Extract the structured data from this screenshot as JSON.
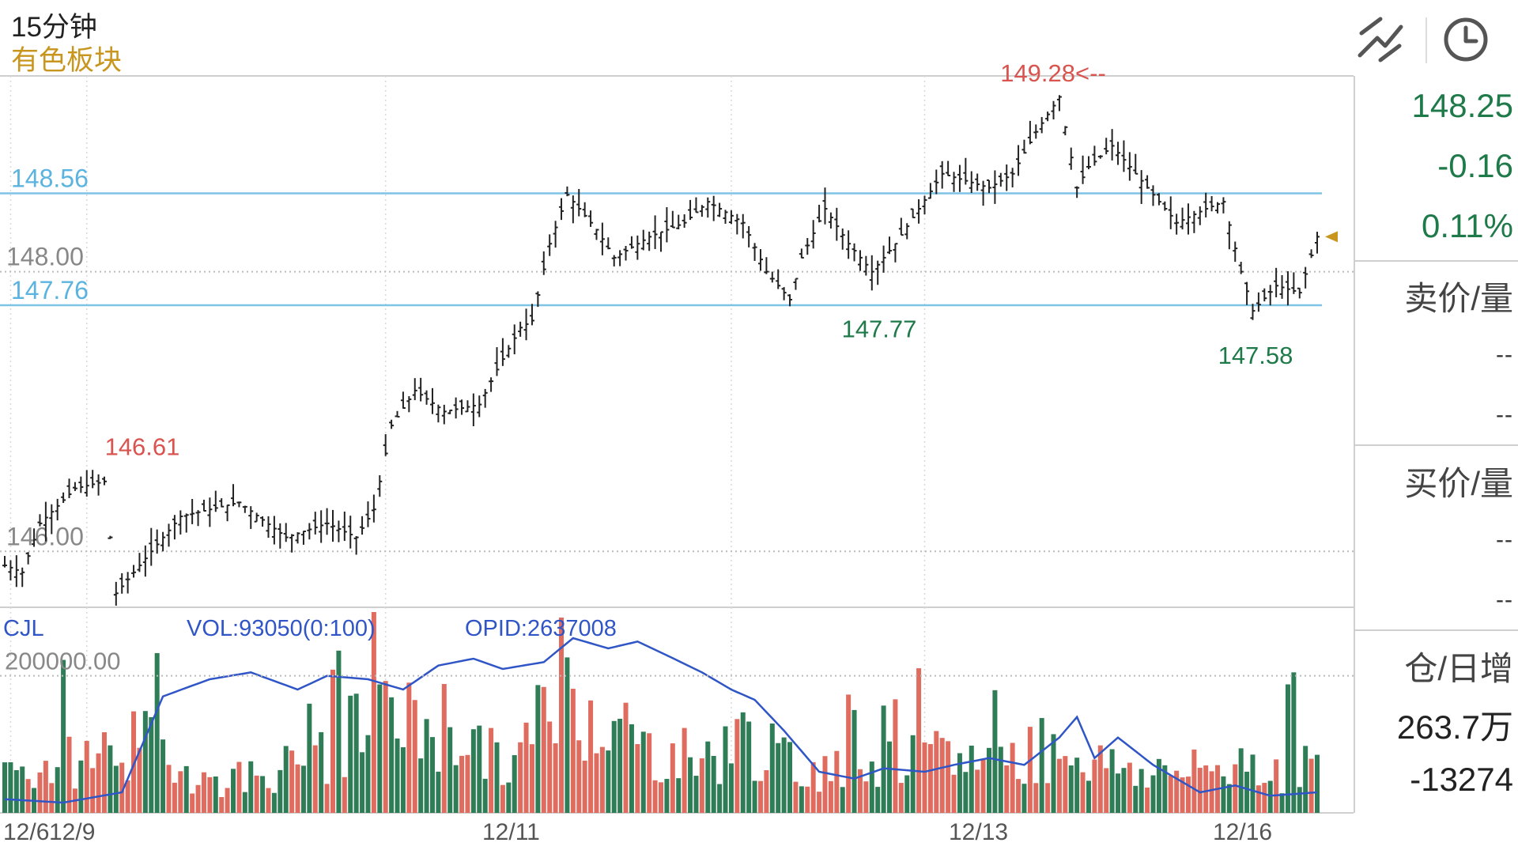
{
  "header": {
    "period": "15分钟",
    "sector": "有色板块",
    "draw_icon": "trend-line-draw-icon",
    "clock_icon": "clock-icon"
  },
  "quote_panel": {
    "last": "148.25",
    "change": "-0.16",
    "change_pct": "0.11%",
    "sell_label": "卖价/量",
    "sell_price": "--",
    "sell_vol": "--",
    "buy_label": "买价/量",
    "buy_price": "--",
    "buy_vol": "--",
    "oi_label": "仓/日增",
    "oi_value": "263.7万",
    "oi_change": "-13274",
    "colors": {
      "up": "#1f7a4a"
    }
  },
  "chart_data": {
    "type": "bar",
    "price_axis": {
      "range": [
        145.6,
        149.4
      ],
      "tick_labels": [
        "148.00",
        "146.00"
      ]
    },
    "reference_lines": [
      {
        "label": "148.56",
        "value": 148.56
      },
      {
        "label": "147.76",
        "value": 147.76
      }
    ],
    "annotations": [
      {
        "text": "146.61",
        "value": 146.61,
        "kind": "high"
      },
      {
        "text": "149.28<--",
        "value": 149.28,
        "kind": "high"
      },
      {
        "text": "147.77",
        "value": 147.77,
        "kind": "low"
      },
      {
        "text": "147.58",
        "value": 147.58,
        "kind": "low"
      }
    ],
    "dates": [
      "12/6",
      "12/9",
      "12/11",
      "12/13",
      "12/16"
    ],
    "price_anchors": [
      [
        0,
        145.9
      ],
      [
        3,
        145.85
      ],
      [
        6,
        146.2
      ],
      [
        12,
        146.45
      ],
      [
        17,
        146.5
      ],
      [
        19,
        145.7
      ],
      [
        23,
        145.9
      ],
      [
        30,
        146.25
      ],
      [
        40,
        146.35
      ],
      [
        48,
        146.1
      ],
      [
        55,
        146.2
      ],
      [
        60,
        146.1
      ],
      [
        63,
        146.3
      ],
      [
        66,
        146.9
      ],
      [
        70,
        147.15
      ],
      [
        75,
        147.0
      ],
      [
        81,
        147.05
      ],
      [
        84,
        147.3
      ],
      [
        88,
        147.6
      ],
      [
        90,
        147.65
      ],
      [
        93,
        148.2
      ],
      [
        96,
        148.55
      ],
      [
        101,
        148.3
      ],
      [
        104,
        148.1
      ],
      [
        110,
        148.25
      ],
      [
        116,
        148.35
      ],
      [
        120,
        148.5
      ],
      [
        126,
        148.35
      ],
      [
        130,
        148.0
      ],
      [
        134,
        147.8
      ],
      [
        136,
        148.1
      ],
      [
        140,
        148.45
      ],
      [
        144,
        148.2
      ],
      [
        148,
        148.0
      ],
      [
        152,
        148.2
      ],
      [
        156,
        148.45
      ],
      [
        160,
        148.7
      ],
      [
        168,
        148.6
      ],
      [
        172,
        148.7
      ],
      [
        176,
        149.0
      ],
      [
        180,
        149.25
      ],
      [
        183,
        148.6
      ],
      [
        185,
        148.75
      ],
      [
        189,
        148.9
      ],
      [
        193,
        148.7
      ],
      [
        197,
        148.5
      ],
      [
        200,
        148.35
      ],
      [
        205,
        148.45
      ],
      [
        208,
        148.5
      ],
      [
        211,
        148.0
      ],
      [
        213,
        147.72
      ],
      [
        217,
        147.9
      ],
      [
        221,
        147.85
      ],
      [
        224,
        148.25
      ]
    ],
    "price_last": 148.25,
    "volume_panel": {
      "indicator": "CJL",
      "readouts": [
        "VOL:93050(0:100)",
        "OPID:2637008"
      ],
      "tick_label": "200000.00",
      "range": [
        0,
        300000
      ],
      "volume_anchors": [
        [
          0,
          60000
        ],
        [
          10,
          70000
        ],
        [
          20,
          100000
        ],
        [
          26,
          95000
        ],
        [
          35,
          45000
        ],
        [
          45,
          60000
        ],
        [
          55,
          80000
        ],
        [
          60,
          120000
        ],
        [
          66,
          130000
        ],
        [
          76,
          130000
        ],
        [
          86,
          60000
        ],
        [
          94,
          170000
        ],
        [
          100,
          160000
        ],
        [
          110,
          90000
        ],
        [
          120,
          80000
        ],
        [
          126,
          110000
        ],
        [
          134,
          70000
        ],
        [
          144,
          60000
        ],
        [
          152,
          70000
        ],
        [
          160,
          80000
        ],
        [
          170,
          80000
        ],
        [
          180,
          100000
        ],
        [
          188,
          70000
        ],
        [
          196,
          60000
        ],
        [
          204,
          60000
        ],
        [
          212,
          80000
        ],
        [
          218,
          60000
        ],
        [
          224,
          70000
        ]
      ],
      "oi_anchors": [
        [
          0,
          20000
        ],
        [
          10,
          15000
        ],
        [
          20,
          30000
        ],
        [
          27,
          170000
        ],
        [
          35,
          195000
        ],
        [
          42,
          205000
        ],
        [
          50,
          180000
        ],
        [
          55,
          200000
        ],
        [
          62,
          195000
        ],
        [
          68,
          180000
        ],
        [
          74,
          215000
        ],
        [
          80,
          225000
        ],
        [
          85,
          210000
        ],
        [
          92,
          220000
        ],
        [
          97,
          255000
        ],
        [
          103,
          240000
        ],
        [
          108,
          250000
        ],
        [
          113,
          230000
        ],
        [
          119,
          205000
        ],
        [
          124,
          180000
        ],
        [
          128,
          165000
        ],
        [
          133,
          120000
        ],
        [
          139,
          60000
        ],
        [
          145,
          50000
        ],
        [
          150,
          65000
        ],
        [
          157,
          60000
        ],
        [
          162,
          70000
        ],
        [
          168,
          80000
        ],
        [
          174,
          70000
        ],
        [
          180,
          110000
        ],
        [
          183,
          140000
        ],
        [
          186,
          80000
        ],
        [
          190,
          110000
        ],
        [
          196,
          70000
        ],
        [
          204,
          30000
        ],
        [
          210,
          40000
        ],
        [
          216,
          25000
        ],
        [
          224,
          30000
        ]
      ]
    }
  }
}
